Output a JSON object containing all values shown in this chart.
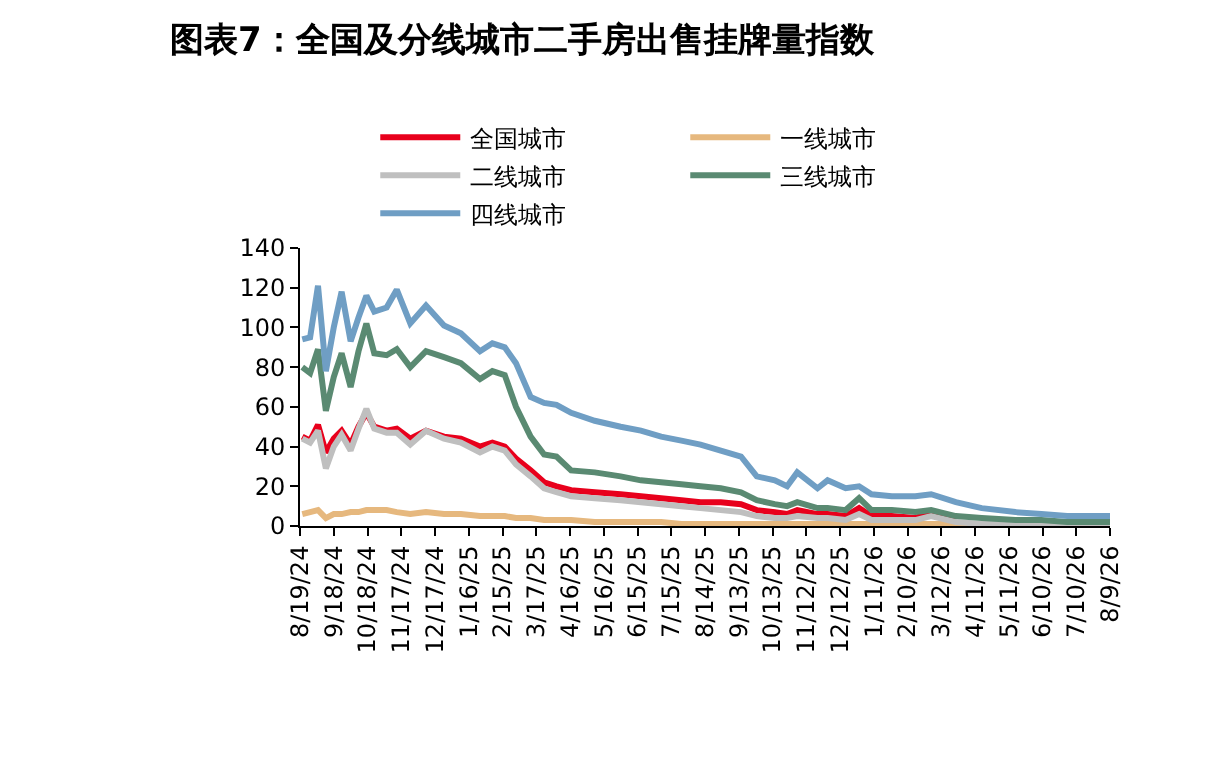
{
  "chart_data": {
    "type": "line",
    "title": "图表7：全国及分线城市二手房出售挂牌量指数",
    "x": [
      "2024-08-21",
      "2024-08-28",
      "2024-09-04",
      "2024-09-11",
      "2024-09-18",
      "2024-09-25",
      "2024-10-03",
      "2024-10-10",
      "2024-10-17",
      "2024-10-24",
      "2024-11-04",
      "2024-11-13",
      "2024-11-25",
      "2024-12-09",
      "2024-12-25",
      "2025-01-09",
      "2025-01-26",
      "2025-02-06",
      "2025-02-17",
      "2025-02-27",
      "2025-03-12",
      "2025-03-24",
      "2025-04-04",
      "2025-04-17",
      "2025-05-08",
      "2025-05-31",
      "2025-06-18",
      "2025-07-06",
      "2025-07-24",
      "2025-08-10",
      "2025-08-28",
      "2025-09-15",
      "2025-09-29",
      "2025-10-15",
      "2025-10-26",
      "2025-11-04",
      "2025-11-22",
      "2025-12-01",
      "2025-12-17",
      "2025-12-29",
      "2026-01-09",
      "2026-01-27",
      "2026-02-17",
      "2026-03-03",
      "2026-03-25",
      "2026-04-17",
      "2026-05-17",
      "2026-06-09",
      "2026-07-02",
      "2026-08-09"
    ],
    "series": [
      {
        "name": "全国城市",
        "color": "#e8001c",
        "values": [
          45,
          43,
          51,
          37,
          44,
          48,
          41,
          50,
          57,
          50,
          48,
          49,
          44,
          48,
          45,
          44,
          40,
          42,
          40,
          34,
          28,
          22,
          20,
          18,
          17,
          16,
          15,
          14,
          13,
          12,
          12,
          11,
          8,
          7,
          6,
          8,
          6,
          6,
          5,
          9,
          5,
          5,
          4,
          7,
          4,
          null,
          null,
          null,
          null,
          null
        ]
      },
      {
        "name": "一线城市",
        "color": "#e6b87e",
        "values": [
          6,
          7,
          8,
          4,
          6,
          6,
          7,
          7,
          8,
          8,
          8,
          7,
          6,
          7,
          6,
          6,
          5,
          5,
          5,
          4,
          4,
          3,
          3,
          3,
          2,
          2,
          2,
          2,
          1,
          1,
          1,
          1,
          1,
          1,
          1,
          1,
          1,
          1,
          1,
          1,
          1,
          1,
          1,
          1,
          1,
          1,
          1,
          null,
          null,
          null
        ]
      },
      {
        "name": "二线城市",
        "color": "#bfbfbf",
        "values": [
          44,
          42,
          48,
          29,
          40,
          46,
          38,
          49,
          59,
          49,
          47,
          47,
          41,
          48,
          44,
          42,
          37,
          40,
          38,
          31,
          25,
          19,
          17,
          15,
          14,
          13,
          12,
          11,
          10,
          9,
          8,
          7,
          5,
          4,
          4,
          5,
          4,
          4,
          3,
          6,
          3,
          3,
          3,
          5,
          2,
          1,
          1,
          1,
          1,
          1
        ]
      },
      {
        "name": "三线城市",
        "color": "#5a8a72",
        "values": [
          80,
          77,
          89,
          58,
          75,
          87,
          70,
          88,
          102,
          87,
          86,
          89,
          80,
          88,
          85,
          82,
          74,
          78,
          76,
          60,
          45,
          36,
          35,
          28,
          27,
          25,
          23,
          22,
          21,
          20,
          19,
          17,
          13,
          11,
          10,
          12,
          9,
          9,
          8,
          14,
          8,
          8,
          7,
          8,
          5,
          4,
          3,
          3,
          2,
          2
        ]
      },
      {
        "name": "四线城市",
        "color": "#6f9ec4",
        "values": [
          94,
          95,
          121,
          78,
          100,
          118,
          93,
          105,
          116,
          108,
          110,
          119,
          102,
          111,
          101,
          97,
          88,
          92,
          90,
          82,
          65,
          62,
          61,
          57,
          53,
          50,
          48,
          45,
          43,
          41,
          38,
          35,
          25,
          23,
          20,
          27,
          19,
          23,
          19,
          20,
          16,
          15,
          15,
          16,
          12,
          9,
          7,
          6,
          5,
          5
        ]
      }
    ],
    "xlim": [
      "2024-08-19",
      "2026-08-09"
    ],
    "xticks": [
      {
        "value": "2024-08-19",
        "label": "8/19/24"
      },
      {
        "value": "2024-09-18",
        "label": "9/18/24"
      },
      {
        "value": "2024-10-18",
        "label": "10/18/24"
      },
      {
        "value": "2024-11-17",
        "label": "11/17/24"
      },
      {
        "value": "2024-12-17",
        "label": "12/17/24"
      },
      {
        "value": "2025-01-16",
        "label": "1/16/25"
      },
      {
        "value": "2025-02-15",
        "label": "2/15/25"
      },
      {
        "value": "2025-03-17",
        "label": "3/17/25"
      },
      {
        "value": "2025-04-16",
        "label": "4/16/25"
      },
      {
        "value": "2025-05-16",
        "label": "5/16/25"
      },
      {
        "value": "2025-06-15",
        "label": "6/15/25"
      },
      {
        "value": "2025-07-15",
        "label": "7/15/25"
      },
      {
        "value": "2025-08-14",
        "label": "8/14/25"
      },
      {
        "value": "2025-09-13",
        "label": "9/13/25"
      },
      {
        "value": "2025-10-13",
        "label": "10/13/25"
      },
      {
        "value": "2025-11-12",
        "label": "11/12/25"
      },
      {
        "value": "2025-12-12",
        "label": "12/12/25"
      },
      {
        "value": "2026-01-11",
        "label": "1/11/26"
      },
      {
        "value": "2026-02-10",
        "label": "2/10/26"
      },
      {
        "value": "2026-03-12",
        "label": "3/12/26"
      },
      {
        "value": "2026-04-11",
        "label": "4/11/26"
      },
      {
        "value": "2026-05-11",
        "label": "5/11/26"
      },
      {
        "value": "2026-06-10",
        "label": "6/10/26"
      },
      {
        "value": "2026-07-10",
        "label": "7/10/26"
      },
      {
        "value": "2026-08-09",
        "label": "8/9/26"
      }
    ],
    "ylim": [
      0,
      140
    ],
    "yticks": [
      0,
      20,
      40,
      60,
      80,
      100,
      120,
      140
    ],
    "grid": false,
    "legend": "top",
    "marker": "none",
    "line_style": "solid"
  }
}
